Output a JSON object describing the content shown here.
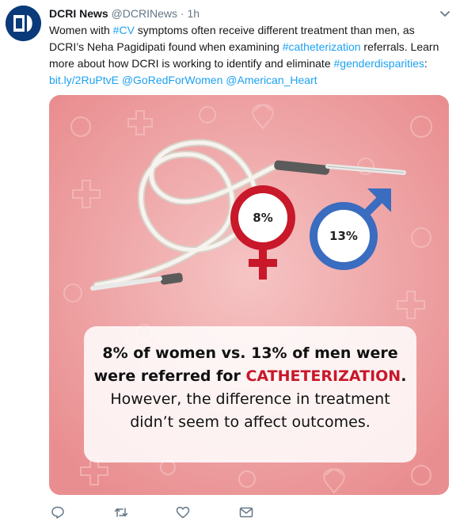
{
  "tweet": {
    "author_name": "DCRI News",
    "author_handle": "@DCRINews",
    "separator": "·",
    "time": "1h",
    "text_line1": "Women with #CV symptoms often receive different treatment than men, as",
    "text_line2": "DCRI’s Neha Pagidipati found when examining #catheterization referrals. Learn",
    "text_line3": "more about how DCRI is working to identify and eliminate #genderdisparities:",
    "text_line4": "bit.ly/2RuPtvE @GoRedForWomen @American_Heart"
  },
  "media": {
    "female_pct": "8%",
    "male_pct": "13%",
    "caption_line1": "8% of women vs. 13% of men were",
    "caption_line2_prefix": "were referred for ",
    "caption_line2_highlight": "CATHETERIZATION",
    "caption_line2_suffix": ".",
    "caption_line3": "However, the difference in treatment",
    "caption_line4": "didn’t seem to affect outcomes."
  },
  "colors": {
    "female": "#c8182a",
    "male": "#3a6cc0",
    "link": "#1da1f2",
    "background_pink": "#eea1a2"
  },
  "actions": {
    "icons": [
      "reply-icon",
      "retweet-icon",
      "like-icon",
      "mail-icon"
    ]
  }
}
